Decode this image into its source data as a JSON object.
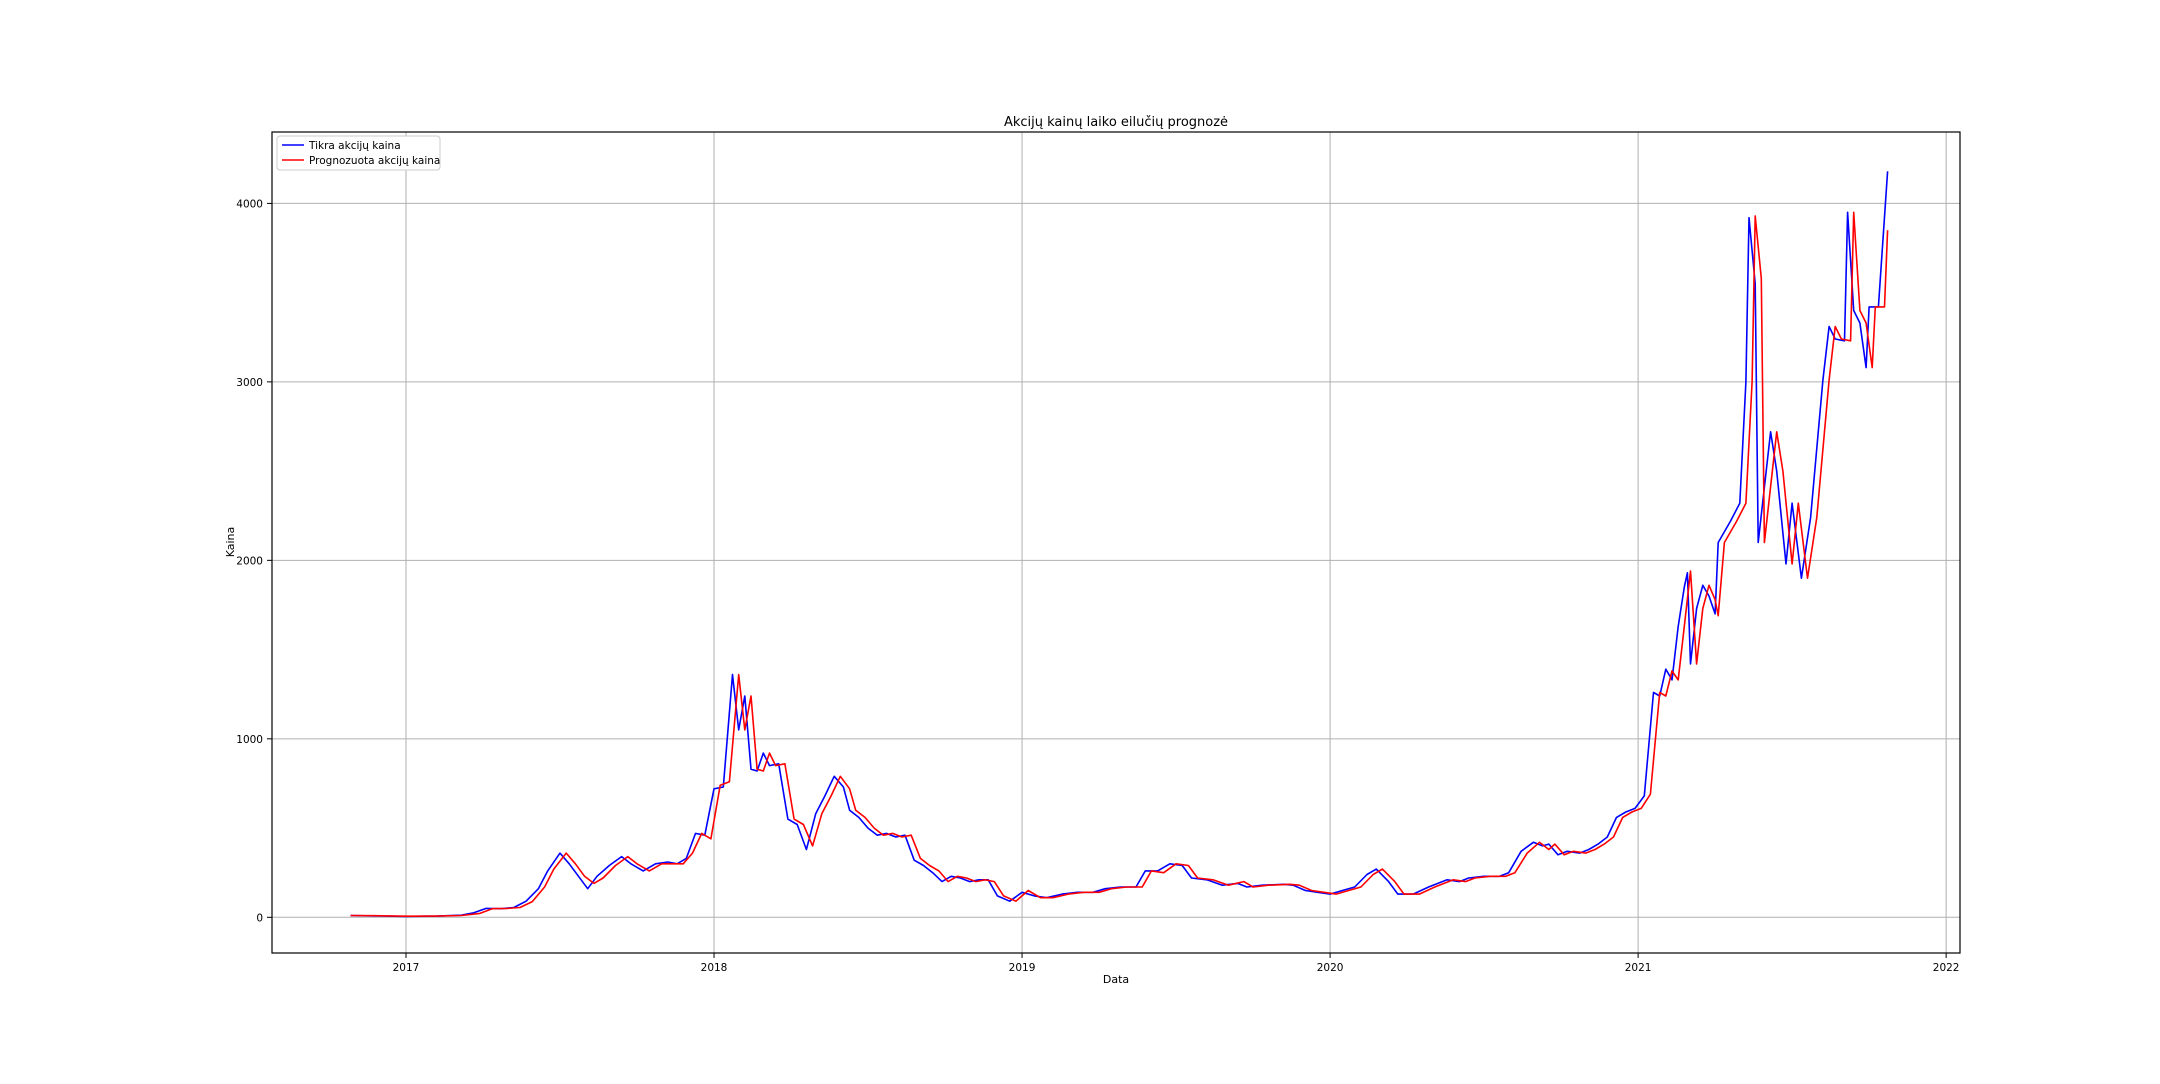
{
  "chart_data": {
    "type": "line",
    "title": "Akcijų kainų laiko eilučių prognozė",
    "xlabel": "Data",
    "ylabel": "Kaina",
    "xlim": [
      2016.565,
      2022.045
    ],
    "ylim": [
      -200,
      4400
    ],
    "x_ticks": [
      "2017",
      "2018",
      "2019",
      "2020",
      "2021",
      "2022"
    ],
    "y_ticks": [
      "0",
      "1000",
      "2000",
      "3000",
      "4000"
    ],
    "grid": true,
    "legend_position": "top-left",
    "series": [
      {
        "name": "Tikra akcijų kaina",
        "color": "#0000ff",
        "points": [
          [
            2016.82,
            10
          ],
          [
            2016.9,
            8
          ],
          [
            2017.0,
            5
          ],
          [
            2017.1,
            7
          ],
          [
            2017.18,
            12
          ],
          [
            2017.22,
            25
          ],
          [
            2017.26,
            50
          ],
          [
            2017.31,
            48
          ],
          [
            2017.35,
            55
          ],
          [
            2017.39,
            90
          ],
          [
            2017.43,
            160
          ],
          [
            2017.46,
            260
          ],
          [
            2017.5,
            360
          ],
          [
            2017.53,
            300
          ],
          [
            2017.56,
            230
          ],
          [
            2017.59,
            160
          ],
          [
            2017.62,
            230
          ],
          [
            2017.66,
            290
          ],
          [
            2017.7,
            340
          ],
          [
            2017.73,
            300
          ],
          [
            2017.77,
            260
          ],
          [
            2017.81,
            300
          ],
          [
            2017.85,
            310
          ],
          [
            2017.88,
            300
          ],
          [
            2017.91,
            330
          ],
          [
            2017.94,
            470
          ],
          [
            2017.97,
            460
          ],
          [
            2018.0,
            720
          ],
          [
            2018.03,
            730
          ],
          [
            2018.06,
            1360
          ],
          [
            2018.08,
            1050
          ],
          [
            2018.1,
            1240
          ],
          [
            2018.12,
            830
          ],
          [
            2018.14,
            820
          ],
          [
            2018.16,
            920
          ],
          [
            2018.18,
            850
          ],
          [
            2018.21,
            860
          ],
          [
            2018.24,
            550
          ],
          [
            2018.27,
            520
          ],
          [
            2018.3,
            380
          ],
          [
            2018.33,
            580
          ],
          [
            2018.36,
            680
          ],
          [
            2018.39,
            790
          ],
          [
            2018.42,
            730
          ],
          [
            2018.44,
            600
          ],
          [
            2018.47,
            560
          ],
          [
            2018.5,
            500
          ],
          [
            2018.53,
            460
          ],
          [
            2018.56,
            470
          ],
          [
            2018.59,
            450
          ],
          [
            2018.62,
            460
          ],
          [
            2018.65,
            320
          ],
          [
            2018.68,
            290
          ],
          [
            2018.71,
            250
          ],
          [
            2018.74,
            200
          ],
          [
            2018.77,
            230
          ],
          [
            2018.8,
            220
          ],
          [
            2018.83,
            200
          ],
          [
            2018.86,
            210
          ],
          [
            2018.89,
            210
          ],
          [
            2018.92,
            120
          ],
          [
            2018.96,
            90
          ],
          [
            2019.0,
            140
          ],
          [
            2019.04,
            120
          ],
          [
            2019.08,
            110
          ],
          [
            2019.13,
            130
          ],
          [
            2019.18,
            140
          ],
          [
            2019.23,
            140
          ],
          [
            2019.27,
            160
          ],
          [
            2019.32,
            170
          ],
          [
            2019.37,
            170
          ],
          [
            2019.4,
            260
          ],
          [
            2019.44,
            260
          ],
          [
            2019.48,
            300
          ],
          [
            2019.52,
            290
          ],
          [
            2019.55,
            220
          ],
          [
            2019.6,
            210
          ],
          [
            2019.65,
            180
          ],
          [
            2019.7,
            190
          ],
          [
            2019.73,
            170
          ],
          [
            2019.78,
            180
          ],
          [
            2019.85,
            185
          ],
          [
            2019.88,
            180
          ],
          [
            2019.92,
            150
          ],
          [
            2019.96,
            140
          ],
          [
            2020.0,
            130
          ],
          [
            2020.04,
            150
          ],
          [
            2020.08,
            170
          ],
          [
            2020.12,
            240
          ],
          [
            2020.15,
            270
          ],
          [
            2020.19,
            200
          ],
          [
            2020.22,
            130
          ],
          [
            2020.27,
            130
          ],
          [
            2020.32,
            170
          ],
          [
            2020.38,
            210
          ],
          [
            2020.42,
            200
          ],
          [
            2020.45,
            220
          ],
          [
            2020.5,
            230
          ],
          [
            2020.55,
            230
          ],
          [
            2020.58,
            250
          ],
          [
            2020.62,
            370
          ],
          [
            2020.66,
            420
          ],
          [
            2020.69,
            400
          ],
          [
            2020.71,
            410
          ],
          [
            2020.74,
            350
          ],
          [
            2020.77,
            370
          ],
          [
            2020.81,
            360
          ],
          [
            2020.84,
            380
          ],
          [
            2020.87,
            410
          ],
          [
            2020.9,
            450
          ],
          [
            2020.93,
            560
          ],
          [
            2020.96,
            590
          ],
          [
            2020.99,
            610
          ],
          [
            2021.02,
            680
          ],
          [
            2021.05,
            1260
          ],
          [
            2021.07,
            1240
          ],
          [
            2021.09,
            1390
          ],
          [
            2021.11,
            1330
          ],
          [
            2021.13,
            1630
          ],
          [
            2021.15,
            1850
          ],
          [
            2021.16,
            1930
          ],
          [
            2021.17,
            1420
          ],
          [
            2021.19,
            1730
          ],
          [
            2021.21,
            1860
          ],
          [
            2021.23,
            1800
          ],
          [
            2021.25,
            1700
          ],
          [
            2021.26,
            2100
          ],
          [
            2021.3,
            2220
          ],
          [
            2021.33,
            2320
          ],
          [
            2021.35,
            3000
          ],
          [
            2021.36,
            3920
          ],
          [
            2021.38,
            3550
          ],
          [
            2021.39,
            2100
          ],
          [
            2021.43,
            2720
          ],
          [
            2021.45,
            2500
          ],
          [
            2021.48,
            1980
          ],
          [
            2021.5,
            2320
          ],
          [
            2021.53,
            1900
          ],
          [
            2021.56,
            2240
          ],
          [
            2021.6,
            3010
          ],
          [
            2021.62,
            3310
          ],
          [
            2021.64,
            3240
          ],
          [
            2021.67,
            3230
          ],
          [
            2021.68,
            3950
          ],
          [
            2021.7,
            3400
          ],
          [
            2021.72,
            3330
          ],
          [
            2021.74,
            3080
          ],
          [
            2021.75,
            3420
          ],
          [
            2021.78,
            3420
          ],
          [
            2021.81,
            4180
          ]
        ]
      },
      {
        "name": "Prognozuota akcijų kaina",
        "color": "#ff0000",
        "points": [
          [
            2016.82,
            10
          ],
          [
            2016.9,
            9
          ],
          [
            2017.0,
            6
          ],
          [
            2017.1,
            7
          ],
          [
            2017.18,
            10
          ],
          [
            2017.24,
            22
          ],
          [
            2017.28,
            48
          ],
          [
            2017.33,
            50
          ],
          [
            2017.37,
            55
          ],
          [
            2017.41,
            88
          ],
          [
            2017.45,
            170
          ],
          [
            2017.48,
            270
          ],
          [
            2017.52,
            360
          ],
          [
            2017.55,
            300
          ],
          [
            2017.58,
            230
          ],
          [
            2017.61,
            190
          ],
          [
            2017.64,
            220
          ],
          [
            2017.68,
            290
          ],
          [
            2017.72,
            340
          ],
          [
            2017.75,
            300
          ],
          [
            2017.79,
            260
          ],
          [
            2017.83,
            300
          ],
          [
            2017.87,
            300
          ],
          [
            2017.9,
            300
          ],
          [
            2017.93,
            360
          ],
          [
            2017.96,
            470
          ],
          [
            2017.99,
            440
          ],
          [
            2018.02,
            740
          ],
          [
            2018.05,
            760
          ],
          [
            2018.08,
            1360
          ],
          [
            2018.1,
            1050
          ],
          [
            2018.12,
            1240
          ],
          [
            2018.14,
            830
          ],
          [
            2018.16,
            820
          ],
          [
            2018.18,
            920
          ],
          [
            2018.2,
            850
          ],
          [
            2018.23,
            860
          ],
          [
            2018.26,
            550
          ],
          [
            2018.29,
            520
          ],
          [
            2018.32,
            400
          ],
          [
            2018.35,
            580
          ],
          [
            2018.38,
            680
          ],
          [
            2018.41,
            790
          ],
          [
            2018.44,
            720
          ],
          [
            2018.46,
            600
          ],
          [
            2018.49,
            560
          ],
          [
            2018.52,
            500
          ],
          [
            2018.55,
            460
          ],
          [
            2018.58,
            470
          ],
          [
            2018.61,
            450
          ],
          [
            2018.64,
            460
          ],
          [
            2018.67,
            330
          ],
          [
            2018.7,
            290
          ],
          [
            2018.73,
            260
          ],
          [
            2018.76,
            200
          ],
          [
            2018.79,
            230
          ],
          [
            2018.82,
            220
          ],
          [
            2018.85,
            200
          ],
          [
            2018.88,
            210
          ],
          [
            2018.91,
            200
          ],
          [
            2018.94,
            120
          ],
          [
            2018.98,
            90
          ],
          [
            2019.02,
            150
          ],
          [
            2019.06,
            110
          ],
          [
            2019.1,
            110
          ],
          [
            2019.15,
            130
          ],
          [
            2019.2,
            140
          ],
          [
            2019.25,
            140
          ],
          [
            2019.29,
            160
          ],
          [
            2019.34,
            170
          ],
          [
            2019.39,
            170
          ],
          [
            2019.42,
            260
          ],
          [
            2019.46,
            250
          ],
          [
            2019.5,
            300
          ],
          [
            2019.54,
            290
          ],
          [
            2019.57,
            220
          ],
          [
            2019.62,
            210
          ],
          [
            2019.67,
            180
          ],
          [
            2019.72,
            200
          ],
          [
            2019.75,
            170
          ],
          [
            2019.8,
            180
          ],
          [
            2019.87,
            185
          ],
          [
            2019.9,
            180
          ],
          [
            2019.94,
            150
          ],
          [
            2019.98,
            140
          ],
          [
            2020.02,
            130
          ],
          [
            2020.06,
            150
          ],
          [
            2020.1,
            170
          ],
          [
            2020.14,
            240
          ],
          [
            2020.17,
            270
          ],
          [
            2020.21,
            200
          ],
          [
            2020.24,
            130
          ],
          [
            2020.29,
            130
          ],
          [
            2020.34,
            170
          ],
          [
            2020.4,
            210
          ],
          [
            2020.44,
            200
          ],
          [
            2020.47,
            220
          ],
          [
            2020.52,
            230
          ],
          [
            2020.57,
            230
          ],
          [
            2020.6,
            250
          ],
          [
            2020.64,
            360
          ],
          [
            2020.68,
            420
          ],
          [
            2020.71,
            380
          ],
          [
            2020.73,
            410
          ],
          [
            2020.76,
            350
          ],
          [
            2020.79,
            370
          ],
          [
            2020.83,
            360
          ],
          [
            2020.86,
            380
          ],
          [
            2020.89,
            410
          ],
          [
            2020.92,
            450
          ],
          [
            2020.95,
            560
          ],
          [
            2020.98,
            590
          ],
          [
            2021.01,
            610
          ],
          [
            2021.04,
            690
          ],
          [
            2021.07,
            1260
          ],
          [
            2021.09,
            1240
          ],
          [
            2021.11,
            1380
          ],
          [
            2021.13,
            1330
          ],
          [
            2021.15,
            1630
          ],
          [
            2021.17,
            1940
          ],
          [
            2021.19,
            1420
          ],
          [
            2021.21,
            1730
          ],
          [
            2021.23,
            1860
          ],
          [
            2021.25,
            1780
          ],
          [
            2021.26,
            1690
          ],
          [
            2021.28,
            2100
          ],
          [
            2021.32,
            2220
          ],
          [
            2021.35,
            2320
          ],
          [
            2021.37,
            3000
          ],
          [
            2021.38,
            3930
          ],
          [
            2021.4,
            3580
          ],
          [
            2021.41,
            2100
          ],
          [
            2021.45,
            2720
          ],
          [
            2021.47,
            2500
          ],
          [
            2021.5,
            1980
          ],
          [
            2021.52,
            2320
          ],
          [
            2021.55,
            1900
          ],
          [
            2021.58,
            2240
          ],
          [
            2021.62,
            3010
          ],
          [
            2021.64,
            3310
          ],
          [
            2021.66,
            3240
          ],
          [
            2021.69,
            3230
          ],
          [
            2021.7,
            3950
          ],
          [
            2021.72,
            3400
          ],
          [
            2021.74,
            3330
          ],
          [
            2021.76,
            3080
          ],
          [
            2021.77,
            3420
          ],
          [
            2021.8,
            3420
          ],
          [
            2021.81,
            3850
          ]
        ]
      }
    ]
  }
}
